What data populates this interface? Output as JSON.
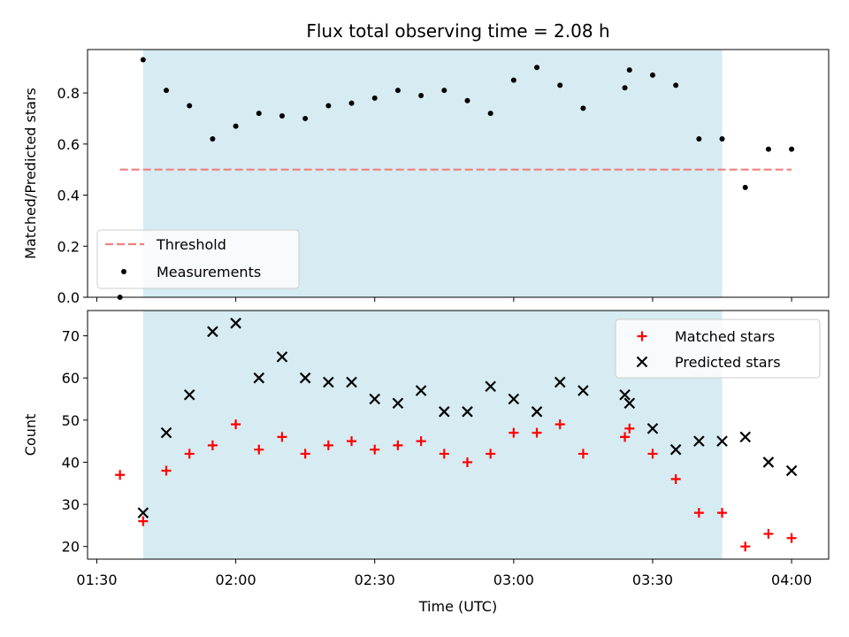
{
  "chart_data": {
    "type": "scatter",
    "title": "Flux total observing time = 2.08 h",
    "xlabel": "Time (UTC)",
    "x_ticks": [
      "01:30",
      "02:00",
      "02:30",
      "03:00",
      "03:30",
      "04:00"
    ],
    "x_range": [
      "01:28",
      "04:08"
    ],
    "shaded_interval": [
      "01:40",
      "03:45"
    ],
    "shade_color": "#add8e6",
    "panels": [
      {
        "ylabel": "Matched/Predicted stars",
        "ylim": [
          0,
          0.97
        ],
        "y_ticks": [
          "0.0",
          "0.2",
          "0.4",
          "0.6",
          "0.8"
        ],
        "legend": {
          "position": "lower-left",
          "items": [
            "Threshold",
            "Measurements"
          ]
        },
        "threshold": {
          "name": "Threshold",
          "value": 0.5,
          "x_range": [
            "01:35",
            "04:00"
          ],
          "color": "#f08080"
        },
        "series": [
          {
            "name": "Measurements",
            "color": "#000000",
            "marker": "dot",
            "points": [
              [
                "01:35",
                0.0
              ],
              [
                "01:40",
                0.93
              ],
              [
                "01:45",
                0.81
              ],
              [
                "01:50",
                0.75
              ],
              [
                "01:55",
                0.62
              ],
              [
                "02:00",
                0.67
              ],
              [
                "02:05",
                0.72
              ],
              [
                "02:10",
                0.71
              ],
              [
                "02:15",
                0.7
              ],
              [
                "02:20",
                0.75
              ],
              [
                "02:25",
                0.76
              ],
              [
                "02:30",
                0.78
              ],
              [
                "02:35",
                0.81
              ],
              [
                "02:40",
                0.79
              ],
              [
                "02:45",
                0.81
              ],
              [
                "02:50",
                0.77
              ],
              [
                "02:55",
                0.72
              ],
              [
                "03:00",
                0.85
              ],
              [
                "03:05",
                0.9
              ],
              [
                "03:10",
                0.83
              ],
              [
                "03:15",
                0.74
              ],
              [
                "03:24",
                0.82
              ],
              [
                "03:25",
                0.89
              ],
              [
                "03:30",
                0.87
              ],
              [
                "03:35",
                0.83
              ],
              [
                "03:40",
                0.62
              ],
              [
                "03:45",
                0.62
              ],
              [
                "03:50",
                0.43
              ],
              [
                "03:55",
                0.58
              ],
              [
                "04:00",
                0.58
              ]
            ]
          }
        ]
      },
      {
        "ylabel": "Count",
        "ylim": [
          17,
          76
        ],
        "y_ticks": [
          "20",
          "30",
          "40",
          "50",
          "60",
          "70"
        ],
        "legend": {
          "position": "top-right",
          "items": [
            "Matched stars",
            "Predicted stars"
          ]
        },
        "series": [
          {
            "name": "Matched stars",
            "color": "#ff0000",
            "marker": "plus",
            "points": [
              [
                "01:35",
                37
              ],
              [
                "01:40",
                26
              ],
              [
                "01:45",
                38
              ],
              [
                "01:50",
                42
              ],
              [
                "01:55",
                44
              ],
              [
                "02:00",
                49
              ],
              [
                "02:05",
                43
              ],
              [
                "02:10",
                46
              ],
              [
                "02:15",
                42
              ],
              [
                "02:20",
                44
              ],
              [
                "02:25",
                45
              ],
              [
                "02:30",
                43
              ],
              [
                "02:35",
                44
              ],
              [
                "02:40",
                45
              ],
              [
                "02:45",
                42
              ],
              [
                "02:50",
                40
              ],
              [
                "02:55",
                42
              ],
              [
                "03:00",
                47
              ],
              [
                "03:05",
                47
              ],
              [
                "03:10",
                49
              ],
              [
                "03:15",
                42
              ],
              [
                "03:24",
                46
              ],
              [
                "03:25",
                48
              ],
              [
                "03:30",
                42
              ],
              [
                "03:35",
                36
              ],
              [
                "03:40",
                28
              ],
              [
                "03:45",
                28
              ],
              [
                "03:50",
                20
              ],
              [
                "03:55",
                23
              ],
              [
                "04:00",
                22
              ]
            ]
          },
          {
            "name": "Predicted stars",
            "color": "#000000",
            "marker": "x",
            "points": [
              [
                "01:40",
                28
              ],
              [
                "01:45",
                47
              ],
              [
                "01:50",
                56
              ],
              [
                "01:55",
                71
              ],
              [
                "02:00",
                73
              ],
              [
                "02:05",
                60
              ],
              [
                "02:10",
                65
              ],
              [
                "02:15",
                60
              ],
              [
                "02:20",
                59
              ],
              [
                "02:25",
                59
              ],
              [
                "02:30",
                55
              ],
              [
                "02:35",
                54
              ],
              [
                "02:40",
                57
              ],
              [
                "02:45",
                52
              ],
              [
                "02:50",
                52
              ],
              [
                "02:55",
                58
              ],
              [
                "03:00",
                55
              ],
              [
                "03:05",
                52
              ],
              [
                "03:10",
                59
              ],
              [
                "03:15",
                57
              ],
              [
                "03:24",
                56
              ],
              [
                "03:25",
                54
              ],
              [
                "03:30",
                48
              ],
              [
                "03:35",
                43
              ],
              [
                "03:40",
                45
              ],
              [
                "03:45",
                45
              ],
              [
                "03:50",
                46
              ],
              [
                "03:55",
                40
              ],
              [
                "04:00",
                38
              ]
            ]
          }
        ]
      }
    ]
  }
}
